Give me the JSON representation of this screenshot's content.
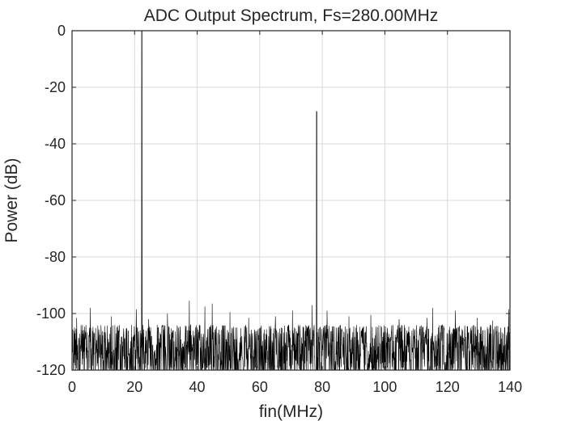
{
  "chart_data": {
    "type": "line",
    "title": "ADC Output Spectrum, Fs=280.00MHz",
    "xlabel": "fin(MHz)",
    "ylabel": "Power (dB)",
    "xlim": [
      0,
      140
    ],
    "ylim": [
      -120,
      0
    ],
    "xticks": [
      0,
      20,
      40,
      60,
      80,
      100,
      120,
      140
    ],
    "yticks": [
      0,
      -20,
      -40,
      -60,
      -80,
      -100,
      -120
    ],
    "xtick_labels": [
      "0",
      "20",
      "40",
      "60",
      "80",
      "100",
      "120",
      "140"
    ],
    "ytick_labels": [
      "0",
      "-20",
      "-40",
      "-60",
      "-80",
      "-100",
      "-120"
    ],
    "grid": true,
    "line_color": "#000000",
    "series": [
      {
        "values_description_free": true,
        "peaks": [
          {
            "x": 22.3,
            "y": 0
          },
          {
            "x": 78.2,
            "y": -28.5
          }
        ],
        "noise_floor_range": [
          -120,
          -95.5
        ],
        "noise_spurs": [
          {
            "x": 1.5,
            "y": -101.5
          },
          {
            "x": 5.8,
            "y": -98
          },
          {
            "x": 12.5,
            "y": -101
          },
          {
            "x": 20.5,
            "y": -98.5
          },
          {
            "x": 24.5,
            "y": -102
          },
          {
            "x": 30.5,
            "y": -100
          },
          {
            "x": 37.5,
            "y": -95.5
          },
          {
            "x": 42.5,
            "y": -97.5
          },
          {
            "x": 44.8,
            "y": -96.5
          },
          {
            "x": 50.5,
            "y": -99.5
          },
          {
            "x": 56.5,
            "y": -101.5
          },
          {
            "x": 65.0,
            "y": -101
          },
          {
            "x": 70.5,
            "y": -99
          },
          {
            "x": 76.8,
            "y": -97
          },
          {
            "x": 81.5,
            "y": -99
          },
          {
            "x": 88.5,
            "y": -101
          },
          {
            "x": 95.5,
            "y": -100.5
          },
          {
            "x": 104.5,
            "y": -102
          },
          {
            "x": 113.5,
            "y": -101.5
          },
          {
            "x": 115.3,
            "y": -98
          },
          {
            "x": 122.5,
            "y": -99
          },
          {
            "x": 129.5,
            "y": -101.5
          },
          {
            "x": 134.5,
            "y": -102.5
          },
          {
            "x": 139.6,
            "y": -98.5
          }
        ]
      }
    ]
  }
}
